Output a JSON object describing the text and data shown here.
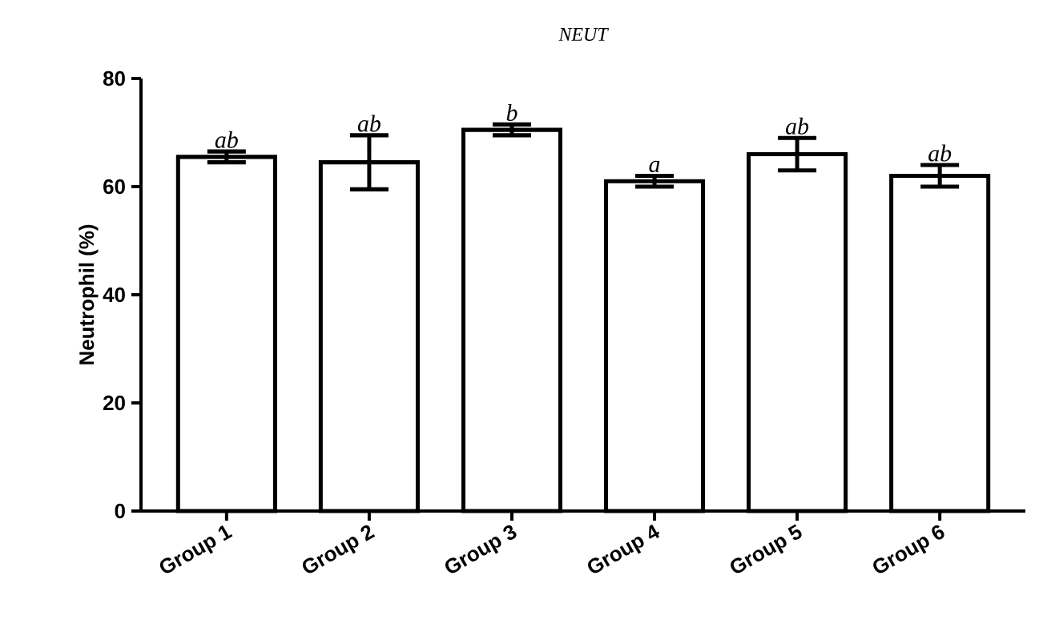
{
  "chart_data": {
    "type": "bar",
    "title": "NEUT",
    "ylabel": "Neutrophil (%)",
    "categories": [
      "Group 1",
      "Group 2",
      "Group 3",
      "Group 4",
      "Group 5",
      "Group 6"
    ],
    "values": [
      65.5,
      64.5,
      70.5,
      61,
      66,
      62
    ],
    "errors": [
      1,
      5,
      1,
      1,
      3,
      2
    ],
    "color": "#000000",
    "ylim": [
      0,
      80
    ],
    "yticks": [
      0,
      20,
      40,
      60,
      80
    ],
    "annotations": [
      {
        "text": "ab",
        "x": "Group 1",
        "y": 66.5
      },
      {
        "text": "ab",
        "x": "Group 2",
        "y": 69.5
      },
      {
        "text": "b",
        "x": "Group 3",
        "y": 71.5
      },
      {
        "text": "a",
        "x": "Group 4",
        "y": 62
      },
      {
        "text": "ab",
        "x": "Group 5",
        "y": 69
      },
      {
        "text": "ab",
        "x": "Group 6",
        "y": 64
      }
    ]
  }
}
